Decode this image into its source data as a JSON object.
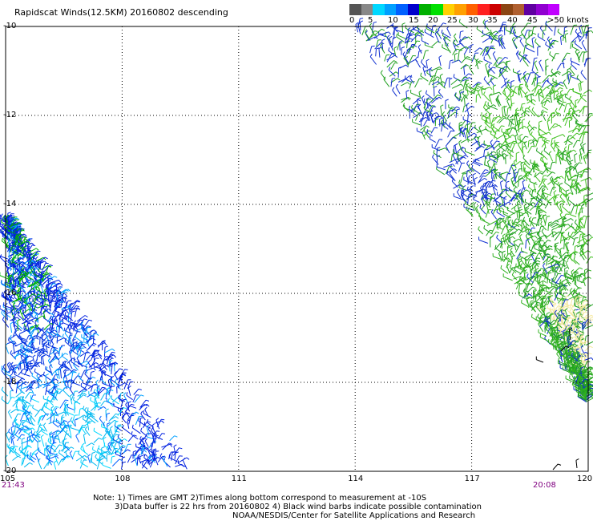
{
  "title": "Rapidscat Winds(12.5KM) 20160802 descending",
  "legend": {
    "colors": [
      "#555555",
      "#888888",
      "#00d8ff",
      "#00a0ff",
      "#0060ff",
      "#0000cc",
      "#00b000",
      "#00e000",
      "#ffd000",
      "#ffa000",
      "#ff6000",
      "#ff2020",
      "#cc0000",
      "#8b4513",
      "#b06030",
      "#6000a0",
      "#9000d0",
      "#c000ff"
    ],
    "labels": [
      "0",
      "5",
      "10",
      "15",
      "20",
      "25",
      "30",
      "35",
      "40",
      "45",
      ">50 knots"
    ]
  },
  "axes": {
    "x_ticks": [
      "105",
      "108",
      "111",
      "114",
      "117",
      "120"
    ],
    "y_ticks": [
      "-10",
      "-12",
      "-14",
      "-16",
      "-18",
      "-20"
    ],
    "xlim": [
      105,
      120
    ],
    "ylim": [
      -20,
      -10
    ]
  },
  "times": {
    "left": "21:43",
    "right": "20:08"
  },
  "notes": [
    "Note: 1) Times are GMT 2)Times along bottom correspond to measurement at -10S",
    "3)Data buffer is 22 hrs from 20160802 4) Black wind barbs indicate possible contamination",
    "NOAA/NESDIS/Center for Satellite Applications and Research"
  ],
  "swaths": {
    "west": {
      "description_colors": [
        "#0000cc",
        "#00a0ff",
        "#00d8ff",
        "#00b000"
      ]
    },
    "east": {
      "description_colors": [
        "#0000cc",
        "#00b000",
        "#00e000",
        "#ffef9a"
      ]
    }
  }
}
